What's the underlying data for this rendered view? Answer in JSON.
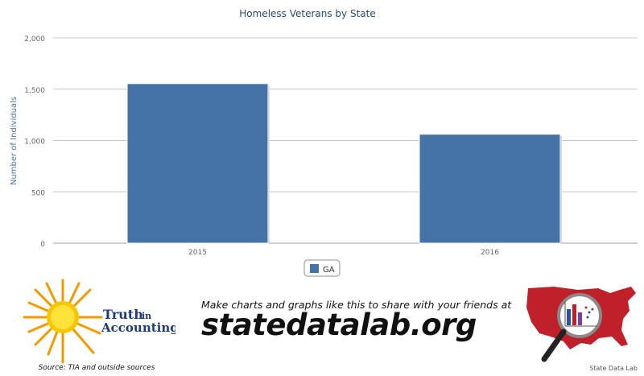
{
  "chart_data": {
    "type": "bar",
    "title": "Homeless Veterans by State",
    "xlabel": "",
    "ylabel": "Number of Individuals",
    "categories": [
      "2015",
      "2016"
    ],
    "series": [
      {
        "name": "GA",
        "values": [
          1554,
          1061
        ],
        "color": "#4572a7"
      }
    ],
    "ylim": [
      0,
      2000
    ],
    "yticks": [
      0,
      500,
      1000,
      1500,
      2000
    ],
    "ytick_labels": [
      "0",
      "500",
      "1,000",
      "1,500",
      "2,000"
    ],
    "grid": true,
    "legend": "bottom-center"
  },
  "footer": {
    "logo_text_line1": "Truth",
    "logo_text_line1_small": "in",
    "logo_text_line2": "Accounting",
    "source": "Source: TIA and outside sources",
    "tagline": "Make charts and graphs like this to share with your friends at",
    "site": "statedatalab.org",
    "credit": "State Data Lab"
  },
  "colors": {
    "bar": "#4572a7",
    "title": "#274b6d",
    "axis_text": "#666666",
    "sun": "#f5b800",
    "map": "#c0202a"
  }
}
